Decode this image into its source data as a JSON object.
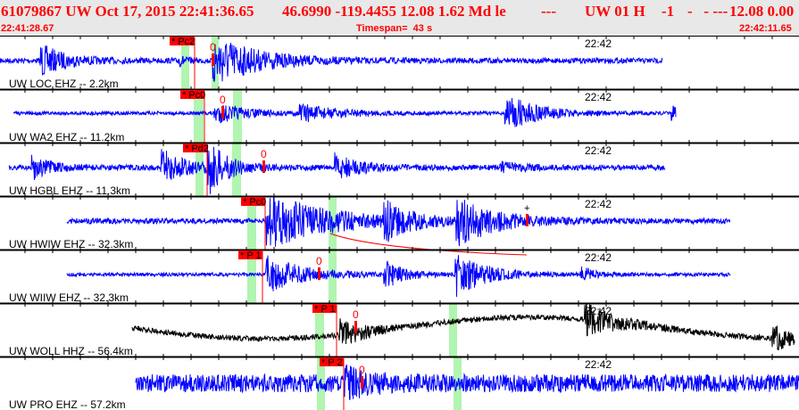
{
  "header": {
    "event_id": "61079867",
    "network": "UW",
    "datetime": "Oct 17, 2015 22:41:36.65",
    "lat": "46.6990",
    "lon": "-119.4455",
    "depth": "12.08",
    "magnitude": "1.62",
    "mag_type": "Md",
    "flag": "le",
    "dashes": "---",
    "source": "UW 01 H",
    "value": "-1",
    "dashes2": "-   - ---",
    "depth2": "12.08",
    "rms": "0.00",
    "start_time": "22:41:28.67",
    "timespan": "Timespan=  43 s",
    "end_time": "22:42:11.65"
  },
  "colors": {
    "header_text": "#ff0000",
    "trace": "#0000ff",
    "trace_alt": "#000000",
    "pick": "#ff0000",
    "window": "#b0f5b0",
    "header_bg": "#e8e8e8"
  },
  "traces": [
    {
      "label": "UW LOC EHZ -- 2.2km",
      "pick": "* Pc2",
      "time": "22:42",
      "marker": "0"
    },
    {
      "label": "UW WA2 EHZ -- 11.2km",
      "pick": "* Pc0",
      "time": "22:42",
      "marker": "0"
    },
    {
      "label": "UW HGBL EHZ -- 11.3km",
      "pick": "* Pd2",
      "time": "22:42",
      "marker": "0"
    },
    {
      "label": "UW HWIW EHZ -- 32.3km",
      "pick": "* Pc0",
      "time": "22:42",
      "marker": "+"
    },
    {
      "label": "UW WIIW EHZ -- 32.3km",
      "pick": "* P 1",
      "time": "22:42",
      "marker": "0"
    },
    {
      "label": "UW WOLL HHZ -- 56.4km",
      "pick": "* P 1",
      "time": "22:42",
      "marker": "0"
    },
    {
      "label": "UW PRO EHZ -- 57.2km",
      "pick": "* P 2",
      "time": "22:42",
      "marker": "0"
    }
  ]
}
